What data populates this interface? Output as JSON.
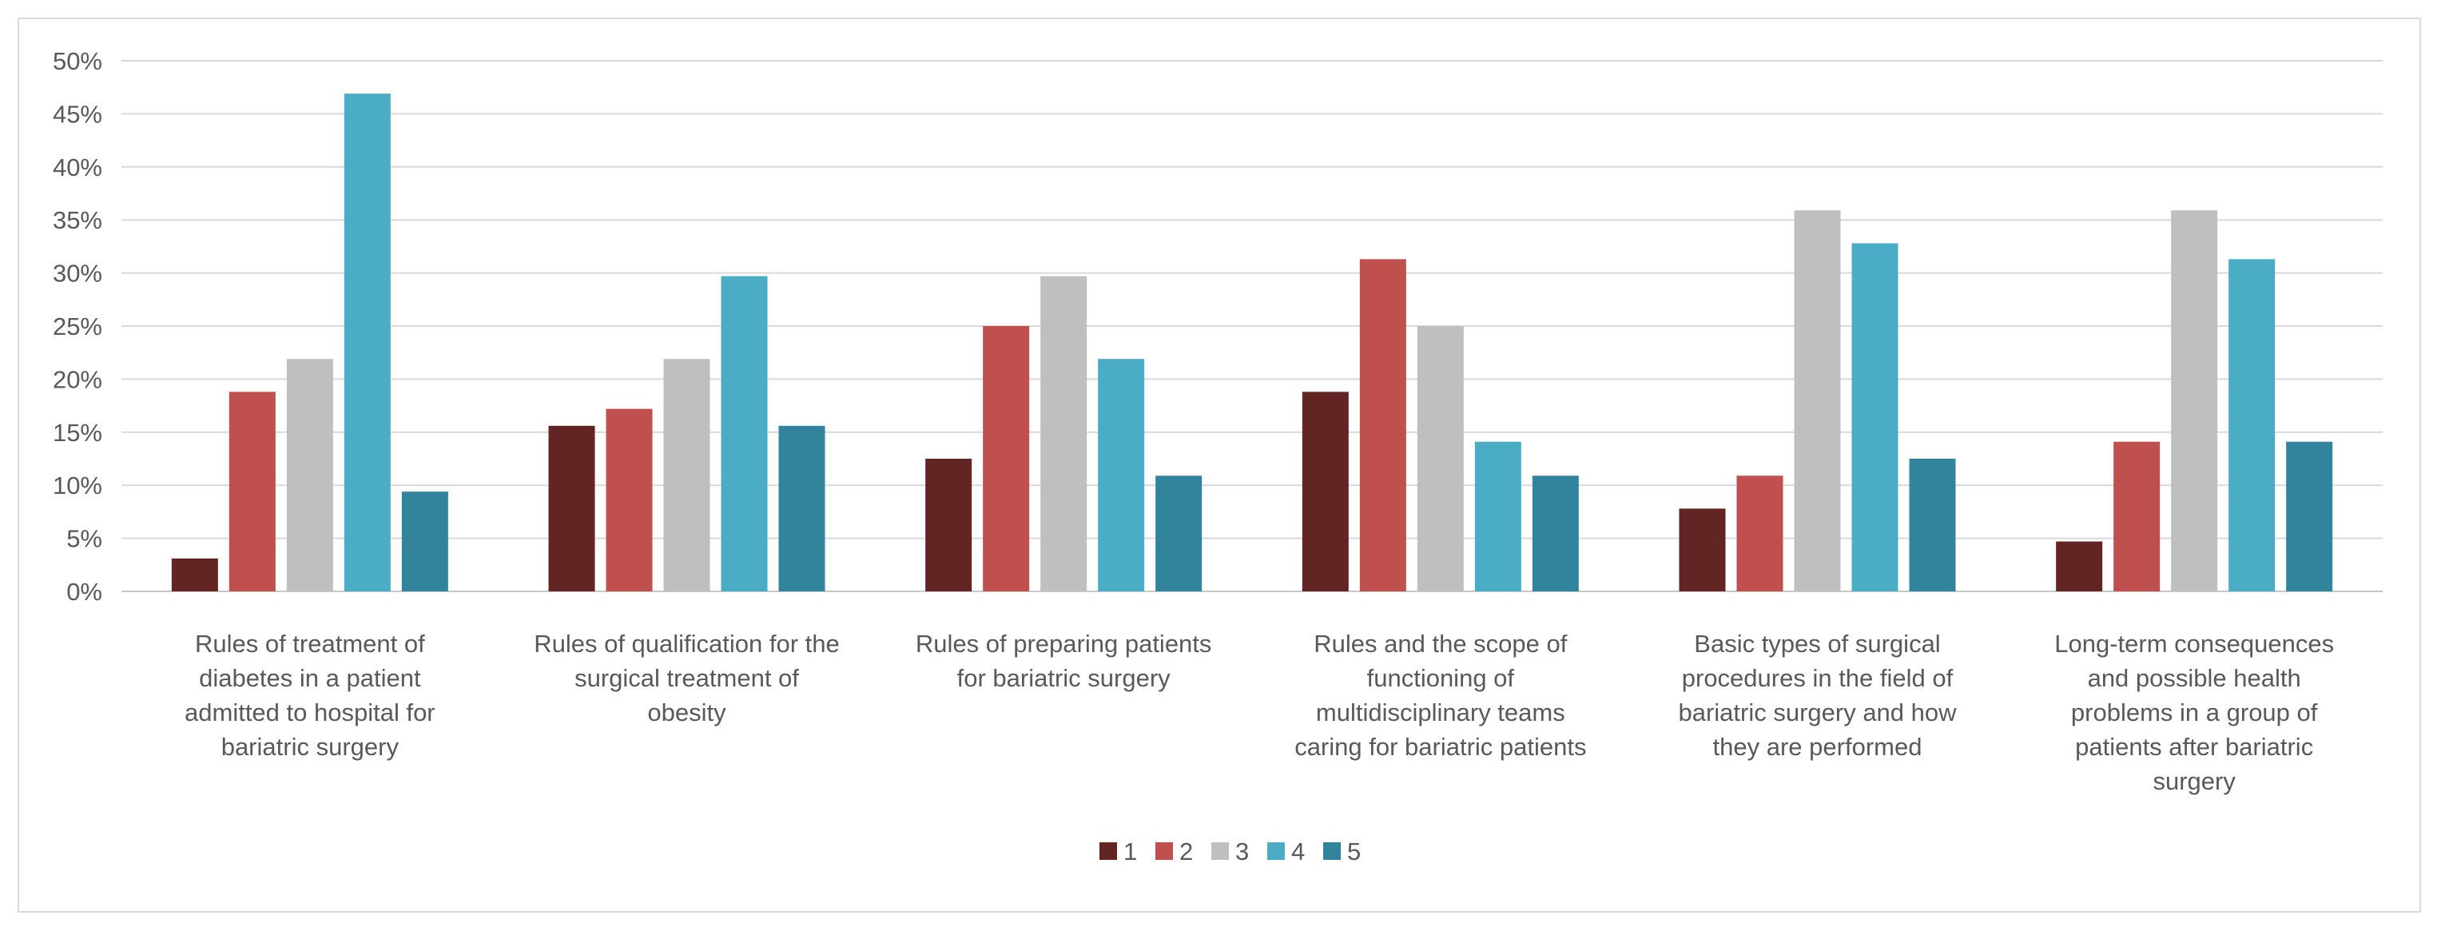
{
  "chart_data": {
    "type": "bar",
    "title": "",
    "xlabel": "",
    "ylabel": "",
    "ylim": [
      0,
      50
    ],
    "yticks": [
      "0%",
      "5%",
      "10%",
      "15%",
      "20%",
      "25%",
      "30%",
      "35%",
      "40%",
      "45%",
      "50%"
    ],
    "grid": true,
    "legend_position": "bottom",
    "categories": [
      [
        "Rules of treatment of",
        "diabetes in a patient",
        "admitted to hospital for",
        "bariatric surgery"
      ],
      [
        "Rules of qualification for the",
        "surgical treatment of",
        "obesity"
      ],
      [
        "Rules of preparing patients",
        "for bariatric surgery"
      ],
      [
        "Rules and the scope of",
        "functioning of",
        "multidisciplinary teams",
        "caring for bariatric patients"
      ],
      [
        "Basic types of surgical",
        "procedures in the field of",
        "bariatric surgery and how",
        "they are performed"
      ],
      [
        "Long-term consequences",
        "and possible health",
        "problems in a group of",
        "patients after bariatric",
        "surgery"
      ]
    ],
    "series": [
      {
        "name": "1",
        "color": "#632523",
        "values": [
          3.1,
          15.6,
          12.5,
          18.8,
          7.8,
          4.7
        ]
      },
      {
        "name": "2",
        "color": "#c0504d",
        "values": [
          18.8,
          17.2,
          25.0,
          31.3,
          10.9,
          14.1
        ]
      },
      {
        "name": "3",
        "color": "#bfbfbf",
        "values": [
          21.9,
          21.9,
          29.7,
          25.0,
          35.9,
          35.9
        ]
      },
      {
        "name": "4",
        "color": "#4bacc6",
        "values": [
          46.9,
          29.7,
          21.9,
          14.1,
          32.8,
          31.3
        ]
      },
      {
        "name": "5",
        "color": "#31849b",
        "values": [
          9.4,
          15.6,
          10.9,
          10.9,
          12.5,
          14.1
        ]
      }
    ]
  }
}
